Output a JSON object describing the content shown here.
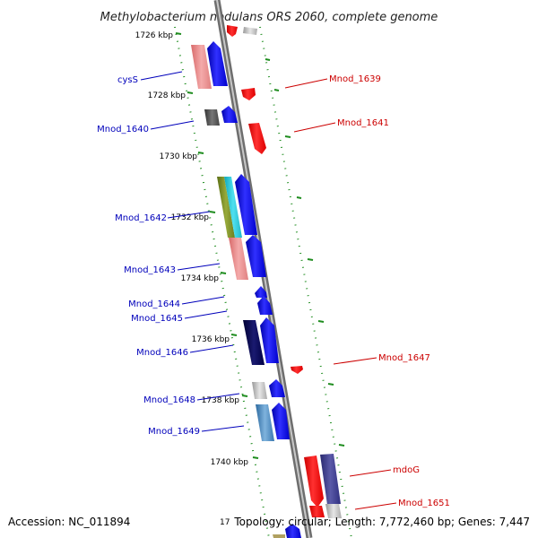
{
  "title": "Methylobacterium nodulans ORS 2060, complete genome",
  "accession": "Accession: NC_011894",
  "topology": "Topology: circular; Length: 7,772,460 bp; Genes: 7,447",
  "footer_tick_fragment": "17",
  "colors": {
    "forward_label": "#0000bb",
    "reverse_label": "#cc0000",
    "backbone": "#8c8c8c",
    "tick_marks": "#1e8c1e"
  },
  "kbp_ticks": [
    "1726 kbp",
    "1728 kbp",
    "1730 kbp",
    "1732 kbp",
    "1734 kbp",
    "1736 kbp",
    "1738 kbp",
    "1740 kbp"
  ],
  "gene_labels": {
    "forward": [
      "cysS",
      "Mnod_1640",
      "Mnod_1642",
      "Mnod_1643",
      "Mnod_1644",
      "Mnod_1645",
      "Mnod_1646",
      "Mnod_1648",
      "Mnod_1649"
    ],
    "reverse": [
      "Mnod_1639",
      "Mnod_1641",
      "Mnod_1647",
      "mdoG",
      "Mnod_1651"
    ]
  }
}
